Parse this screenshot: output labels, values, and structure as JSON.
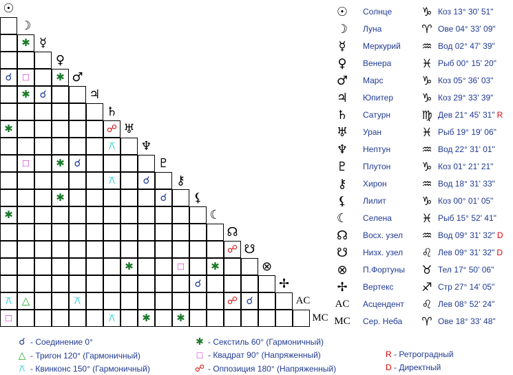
{
  "colors": {
    "conjunction": "#1f3a93",
    "sextile": "#1a7a2a",
    "trine": "#22aa22",
    "square": "#cc22cc",
    "quincunx": "#14c8d0",
    "opposition": "#d01010",
    "retro": "#dd0000"
  },
  "aspect_symbols": {
    "conjunction": "☌",
    "sextile": "✱",
    "trine": "△",
    "square": "□",
    "quincunx": "⚻",
    "opposition": "☍"
  },
  "planets": [
    {
      "glyph": "☉",
      "icon": "sun-icon",
      "name": "Солнце",
      "sign_glyph": "♑",
      "sign_icon": "capricorn-icon",
      "position": "Коз 13° 30' 51\"",
      "flag": ""
    },
    {
      "glyph": "☽",
      "icon": "moon-icon",
      "name": "Луна",
      "sign_glyph": "♈",
      "sign_icon": "aries-icon",
      "position": "Ове 04° 33' 09\"",
      "flag": ""
    },
    {
      "glyph": "☿",
      "icon": "mercury-icon",
      "name": "Меркурий",
      "sign_glyph": "♒",
      "sign_icon": "aquarius-icon",
      "position": "Вод 02° 47' 39\"",
      "flag": ""
    },
    {
      "glyph": "♀",
      "icon": "venus-icon",
      "name": "Венера",
      "sign_glyph": "♓",
      "sign_icon": "pisces-icon",
      "position": "Рыб 00° 15' 20\"",
      "flag": ""
    },
    {
      "glyph": "♂",
      "icon": "mars-icon",
      "name": "Марс",
      "sign_glyph": "♑",
      "sign_icon": "capricorn-icon",
      "position": "Коз 05° 36' 03\"",
      "flag": ""
    },
    {
      "glyph": "♃",
      "icon": "jupiter-icon",
      "name": "Юпитер",
      "sign_glyph": "♑",
      "sign_icon": "capricorn-icon",
      "position": "Коз 29° 33' 39\"",
      "flag": ""
    },
    {
      "glyph": "♄",
      "icon": "saturn-icon",
      "name": "Сатурн",
      "sign_glyph": "♍",
      "sign_icon": "virgo-icon",
      "position": "Дев 21° 45' 31\"",
      "flag": "R"
    },
    {
      "glyph": "♅",
      "icon": "uranus-icon",
      "name": "Уран",
      "sign_glyph": "♓",
      "sign_icon": "pisces-icon",
      "position": "Рыб 19° 19' 06\"",
      "flag": ""
    },
    {
      "glyph": "♆",
      "icon": "neptune-icon",
      "name": "Нептун",
      "sign_glyph": "♒",
      "sign_icon": "aquarius-icon",
      "position": "Вод 22° 31' 01\"",
      "flag": ""
    },
    {
      "glyph": "♇",
      "icon": "pluto-icon",
      "name": "Плутон",
      "sign_glyph": "♑",
      "sign_icon": "capricorn-icon",
      "position": "Коз 01° 21' 21\"",
      "flag": ""
    },
    {
      "glyph": "⚷",
      "icon": "chiron-icon",
      "name": "Хирон",
      "sign_glyph": "♒",
      "sign_icon": "aquarius-icon",
      "position": "Вод 18° 31' 33\"",
      "flag": ""
    },
    {
      "glyph": "⚸",
      "icon": "lilith-icon",
      "name": "Лилит",
      "sign_glyph": "♑",
      "sign_icon": "capricorn-icon",
      "position": "Коз 00° 01' 05\"",
      "flag": ""
    },
    {
      "glyph": "☾",
      "icon": "selena-icon",
      "name": "Селена",
      "sign_glyph": "♓",
      "sign_icon": "pisces-icon",
      "position": "Рыб 15° 52' 41\"",
      "flag": ""
    },
    {
      "glyph": "☊",
      "icon": "north-node-icon",
      "name": "Восх. узел",
      "sign_glyph": "♒",
      "sign_icon": "aquarius-icon",
      "position": "Вод 09° 31' 32\"",
      "flag": "D"
    },
    {
      "glyph": "☋",
      "icon": "south-node-icon",
      "name": "Низх. узел",
      "sign_glyph": "♌",
      "sign_icon": "leo-icon",
      "position": "Лев 09° 31' 32\"",
      "flag": "D"
    },
    {
      "glyph": "⊗",
      "icon": "part-of-fortune-icon",
      "name": "П.Фортуны",
      "sign_glyph": "♉",
      "sign_icon": "taurus-icon",
      "position": "Тел 17° 50' 06\"",
      "flag": ""
    },
    {
      "glyph": "✢",
      "icon": "vertex-icon",
      "name": "Вертекс",
      "sign_glyph": "♐",
      "sign_icon": "sagittarius-icon",
      "position": "Стр 27° 14' 05\"",
      "flag": ""
    },
    {
      "glyph": "AC",
      "icon": "ascendant-icon",
      "name": "Асцендент",
      "sign_glyph": "♌",
      "sign_icon": "leo-icon",
      "position": "Лев 08° 52' 24\"",
      "flag": ""
    },
    {
      "glyph": "MC",
      "icon": "midheaven-icon",
      "name": "Сер. Неба",
      "sign_glyph": "♈",
      "sign_icon": "aries-icon",
      "position": "Ове 18° 33' 48\"",
      "flag": ""
    }
  ],
  "aspects": [
    {
      "row": 2,
      "col": 1,
      "type": "sextile"
    },
    {
      "row": 4,
      "col": 0,
      "type": "conjunction"
    },
    {
      "row": 4,
      "col": 1,
      "type": "square"
    },
    {
      "row": 4,
      "col": 3,
      "type": "sextile"
    },
    {
      "row": 5,
      "col": 1,
      "type": "sextile"
    },
    {
      "row": 5,
      "col": 2,
      "type": "conjunction"
    },
    {
      "row": 7,
      "col": 0,
      "type": "sextile"
    },
    {
      "row": 7,
      "col": 6,
      "type": "opposition"
    },
    {
      "row": 8,
      "col": 6,
      "type": "quincunx"
    },
    {
      "row": 9,
      "col": 1,
      "type": "square"
    },
    {
      "row": 9,
      "col": 3,
      "type": "sextile"
    },
    {
      "row": 9,
      "col": 4,
      "type": "conjunction"
    },
    {
      "row": 10,
      "col": 6,
      "type": "quincunx"
    },
    {
      "row": 10,
      "col": 8,
      "type": "conjunction"
    },
    {
      "row": 11,
      "col": 3,
      "type": "sextile"
    },
    {
      "row": 11,
      "col": 9,
      "type": "conjunction"
    },
    {
      "row": 12,
      "col": 0,
      "type": "sextile"
    },
    {
      "row": 14,
      "col": 13,
      "type": "opposition"
    },
    {
      "row": 15,
      "col": 7,
      "type": "sextile"
    },
    {
      "row": 15,
      "col": 10,
      "type": "square"
    },
    {
      "row": 15,
      "col": 12,
      "type": "sextile"
    },
    {
      "row": 16,
      "col": 11,
      "type": "conjunction"
    },
    {
      "row": 17,
      "col": 0,
      "type": "quincunx"
    },
    {
      "row": 17,
      "col": 1,
      "type": "trine"
    },
    {
      "row": 17,
      "col": 4,
      "type": "quincunx"
    },
    {
      "row": 17,
      "col": 13,
      "type": "opposition"
    },
    {
      "row": 17,
      "col": 14,
      "type": "conjunction"
    },
    {
      "row": 18,
      "col": 0,
      "type": "square"
    },
    {
      "row": 18,
      "col": 6,
      "type": "quincunx"
    },
    {
      "row": 18,
      "col": 8,
      "type": "sextile"
    },
    {
      "row": 18,
      "col": 10,
      "type": "sextile"
    }
  ],
  "legend": {
    "conjunction": "- Соединение 0°",
    "sextile": "- Секстиль 60° (Гармоничный)",
    "trine": "- Тригон 120° (Гармоничный)",
    "square": "- Квадрат 90° (Напряженный)",
    "quincunx": "- Квинконс 150° (Гармоничный)",
    "opposition": "- Оппозиция 180° (Напряженный)",
    "retro_symbol": "R",
    "retro_text": " - Ретроградный",
    "direct_symbol": "D",
    "direct_text": " - Директный"
  }
}
